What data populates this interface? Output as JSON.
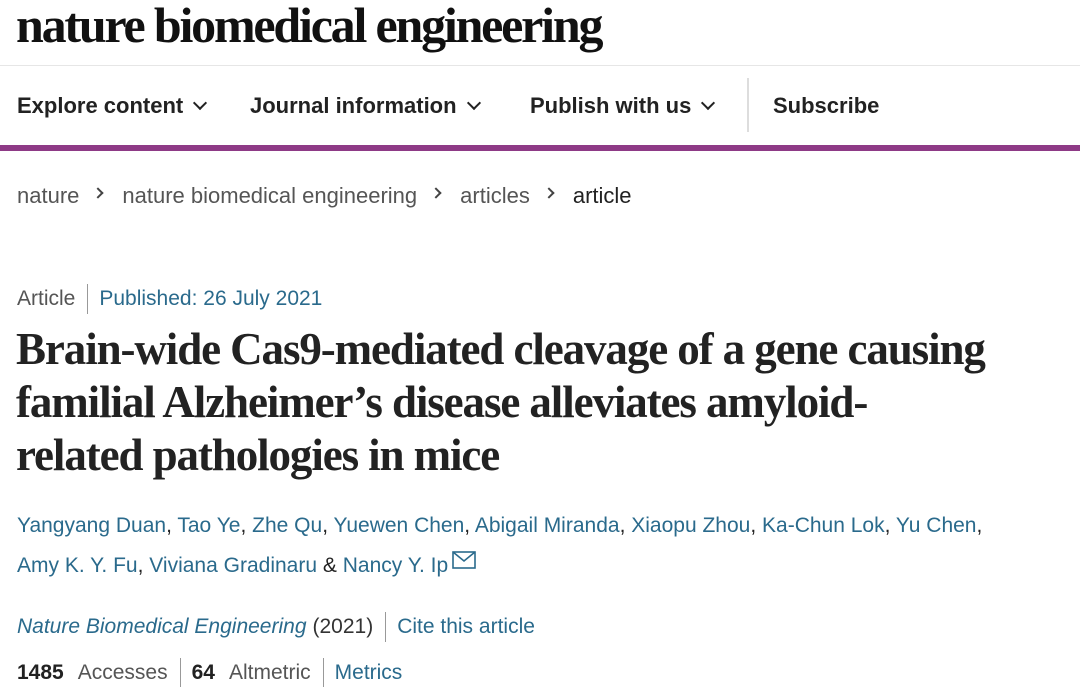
{
  "site": {
    "logo": "nature biomedical engineering"
  },
  "nav": {
    "explore": "Explore content",
    "journal_info": "Journal information",
    "publish": "Publish with us",
    "subscribe": "Subscribe"
  },
  "breadcrumb": [
    "nature",
    "nature biomedical engineering",
    "articles",
    "article"
  ],
  "article": {
    "type": "Article",
    "published": "Published: 26 July 2021",
    "title_lines": [
      "Brain-wide Cas9-mediated cleavage of a gene causing",
      "familial Alzheimer’s disease alleviates amyloid-",
      "related pathologies in mice"
    ],
    "authors": [
      "Yangyang Duan",
      "Tao Ye",
      "Zhe Qu",
      "Yuewen Chen",
      "Abigail Miranda",
      "Xiaopu Zhou",
      "Ka-Chun Lok",
      "Yu Chen",
      "Amy K. Y. Fu",
      "Viviana Gradinaru",
      "Nancy Y. Ip"
    ],
    "sep": {
      "comma": ",",
      "and": "&"
    },
    "journal": "Nature Biomedical Engineering",
    "year": "(2021)",
    "cite": "Cite this article"
  },
  "metrics": {
    "accesses_count": "1485",
    "accesses_label": "Accesses",
    "altmetric_count": "64",
    "altmetric_label": "Altmetric",
    "metrics_link": "Metrics"
  },
  "colors": {
    "accent": "#8e3a86",
    "link": "#2a6a8c"
  },
  "icons": {
    "dropdown": "chevron-down-icon",
    "breadcrumb": "chevron-right-icon",
    "correspondence": "mail-icon"
  }
}
